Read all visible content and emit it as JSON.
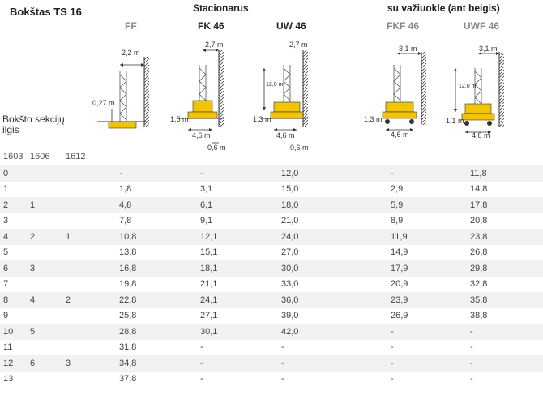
{
  "title": "Bokštas TS 16",
  "groups": {
    "stationary": "Stacionarus",
    "mobile": "su važiuokle (ant beigis)"
  },
  "columns": {
    "ff": "FF",
    "fk46": "FK 46",
    "uw46": "UW 46",
    "fkf46": "FKF 46",
    "uwf46": "UWF 46"
  },
  "row_label": {
    "line1": "Bokšto sekcijų",
    "line2": "ilgis"
  },
  "sections": {
    "s1603": "1603",
    "s1606": "1606",
    "s1612": "1612"
  },
  "diagram_labels": {
    "ff_width": "2,2 m",
    "ff_height": "0,27 m",
    "fk_width": "2,7 m",
    "fk_height": "1,5 m",
    "fk_base": "4,6 m",
    "fk_offset": "0,6 m",
    "uw_width": "2,7 m",
    "uw_top": "12,0 m",
    "uw_height": "1,3 m",
    "uw_base": "4,6 m",
    "uw_offset": "0,6 m",
    "fkf_width": "3,1 m",
    "fkf_height": "1,3 m",
    "fkf_base": "4,6 m",
    "uwf_width": "3,1 m",
    "uwf_top": "12,0 m",
    "uwf_height": "1,1 m",
    "uwf_base": "4,6 m"
  },
  "rows": [
    [
      "0",
      "",
      "",
      "-",
      "-",
      "12,0",
      "-",
      "11,8"
    ],
    [
      "1",
      "",
      "",
      "1,8",
      "3,1",
      "15,0",
      "2,9",
      "14,8"
    ],
    [
      "2",
      "1",
      "",
      "4,8",
      "6,1",
      "18,0",
      "5,9",
      "17,8"
    ],
    [
      "3",
      "",
      "",
      "7,8",
      "9,1",
      "21,0",
      "8,9",
      "20,8"
    ],
    [
      "4",
      "2",
      "1",
      "10,8",
      "12,1",
      "24,0",
      "11,9",
      "23,8"
    ],
    [
      "5",
      "",
      "",
      "13,8",
      "15,1",
      "27,0",
      "14,9",
      "26,8"
    ],
    [
      "6",
      "3",
      "",
      "16,8",
      "18,1",
      "30,0",
      "17,9",
      "29,8"
    ],
    [
      "7",
      "",
      "",
      "19,8",
      "21,1",
      "33,0",
      "20,9",
      "32,8"
    ],
    [
      "8",
      "4",
      "2",
      "22,8",
      "24,1",
      "36,0",
      "23,9",
      "35,8"
    ],
    [
      "9",
      "",
      "",
      "25,8",
      "27,1",
      "39,0",
      "26,9",
      "38,8"
    ],
    [
      "10",
      "5",
      "",
      "28,8",
      "30,1",
      "42,0",
      "-",
      "-"
    ],
    [
      "11",
      "",
      "",
      "31,8",
      "-",
      "-",
      "-",
      "-"
    ],
    [
      "12",
      "6",
      "3",
      "34,8",
      "-",
      "-",
      "-",
      "-"
    ],
    [
      "13",
      "",
      "",
      "37,8",
      "-",
      "-",
      "-",
      "-"
    ]
  ]
}
